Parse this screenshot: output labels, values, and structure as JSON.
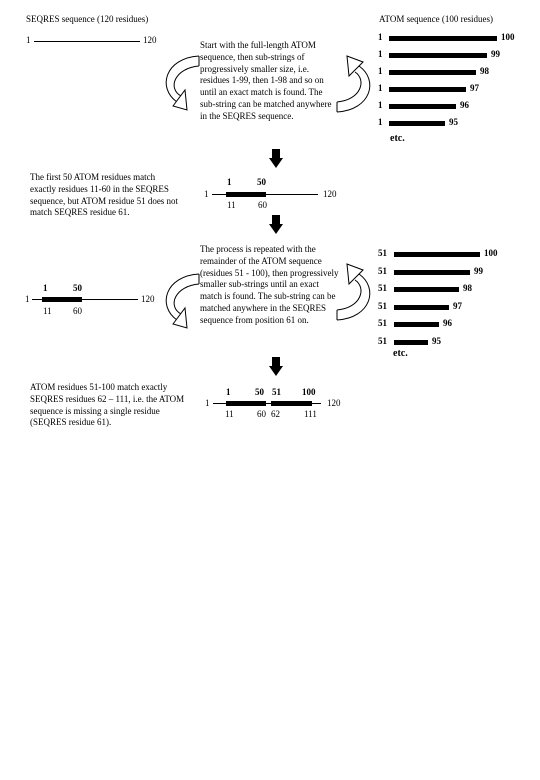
{
  "headers": {
    "seqres": "SEQRES sequence (120 residues)",
    "atom": "ATOM sequence (100 residues)"
  },
  "step1": {
    "seqres_start": "1",
    "seqres_end": "120",
    "text": "Start with the full-length ATOM sequence, then sub-strings of progressively smaller size, i.e. residues 1-99, then 1-98 and so on until an exact match is found. The sub-string can be matched anywhere in the SEQRES sequence.",
    "atom_bars": [
      {
        "start": "1",
        "end": "100",
        "fraction": 1.0
      },
      {
        "start": "1",
        "end": "99",
        "fraction": 0.99
      },
      {
        "start": "1",
        "end": "98",
        "fraction": 0.98
      },
      {
        "start": "1",
        "end": "97",
        "fraction": 0.97
      },
      {
        "start": "1",
        "end": "96",
        "fraction": 0.96
      },
      {
        "start": "1",
        "end": "95",
        "fraction": 0.95
      }
    ],
    "etc": "etc."
  },
  "step2": {
    "text": "The first 50 ATOM residues match exactly residues 11-60 in the SEQRES sequence, but ATOM residue 51 does not match SEQRES residue 61.",
    "line_start": "1",
    "line_end": "120",
    "atom_start": "1",
    "atom_end": "50",
    "seq_start": "11",
    "seq_end": "60"
  },
  "step3": {
    "line_start": "1",
    "line_end": "120",
    "atom_start": "1",
    "atom_end": "50",
    "seq_start": "11",
    "seq_end": "60",
    "text": "The process is repeated with the remainder of the ATOM sequence (residues 51 - 100), then progressively smaller sub-strings until an exact match is found. The sub-string can be matched anywhere in the SEQRES sequence from position 61 on.",
    "atom_bars": [
      {
        "start": "51",
        "end": "100",
        "fraction": 1.0
      },
      {
        "start": "51",
        "end": "99",
        "fraction": 0.98
      },
      {
        "start": "51",
        "end": "98",
        "fraction": 0.96
      },
      {
        "start": "51",
        "end": "97",
        "fraction": 0.94
      },
      {
        "start": "51",
        "end": "96",
        "fraction": 0.92
      },
      {
        "start": "51",
        "end": "95",
        "fraction": 0.9
      }
    ],
    "etc": "etc."
  },
  "step4": {
    "text": "ATOM residues 51-100 match exactly SEQRES residues 62 – 111, i.e. the ATOM sequence is missing a single residue (SEQRES residue 61).",
    "line_start": "1",
    "line_end": "120",
    "atom1_start": "1",
    "atom1_end": "50",
    "atom2_start": "51",
    "atom2_end": "100",
    "seq1_start": "11",
    "seq1_end": "60",
    "seq2_start": "62",
    "seq2_end": "111"
  }
}
